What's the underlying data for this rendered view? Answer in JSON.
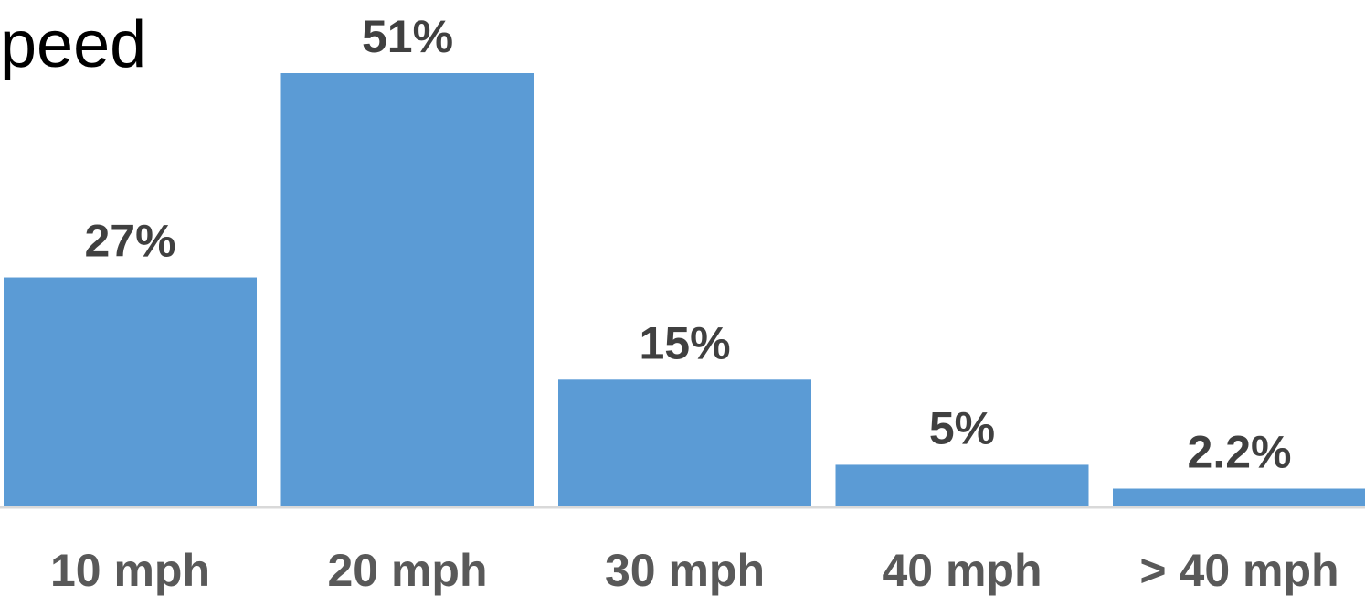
{
  "chart_data": {
    "type": "bar",
    "title": "peed",
    "xlabel": "",
    "ylabel": "",
    "categories": [
      "10 mph",
      "20 mph",
      "30 mph",
      "40 mph",
      "> 40 mph"
    ],
    "values": [
      27,
      51,
      15,
      5,
      2.2
    ],
    "value_labels": [
      "27%",
      "51%",
      "15%",
      "5%",
      "2.2%"
    ],
    "ylim": [
      0,
      51
    ],
    "grid": false,
    "legend": "none",
    "colors": {
      "bar": "#5b9bd5",
      "baseline": "#d9d9d9",
      "value_label": "#404040",
      "category_label": "#595959",
      "title": "#000000"
    }
  }
}
